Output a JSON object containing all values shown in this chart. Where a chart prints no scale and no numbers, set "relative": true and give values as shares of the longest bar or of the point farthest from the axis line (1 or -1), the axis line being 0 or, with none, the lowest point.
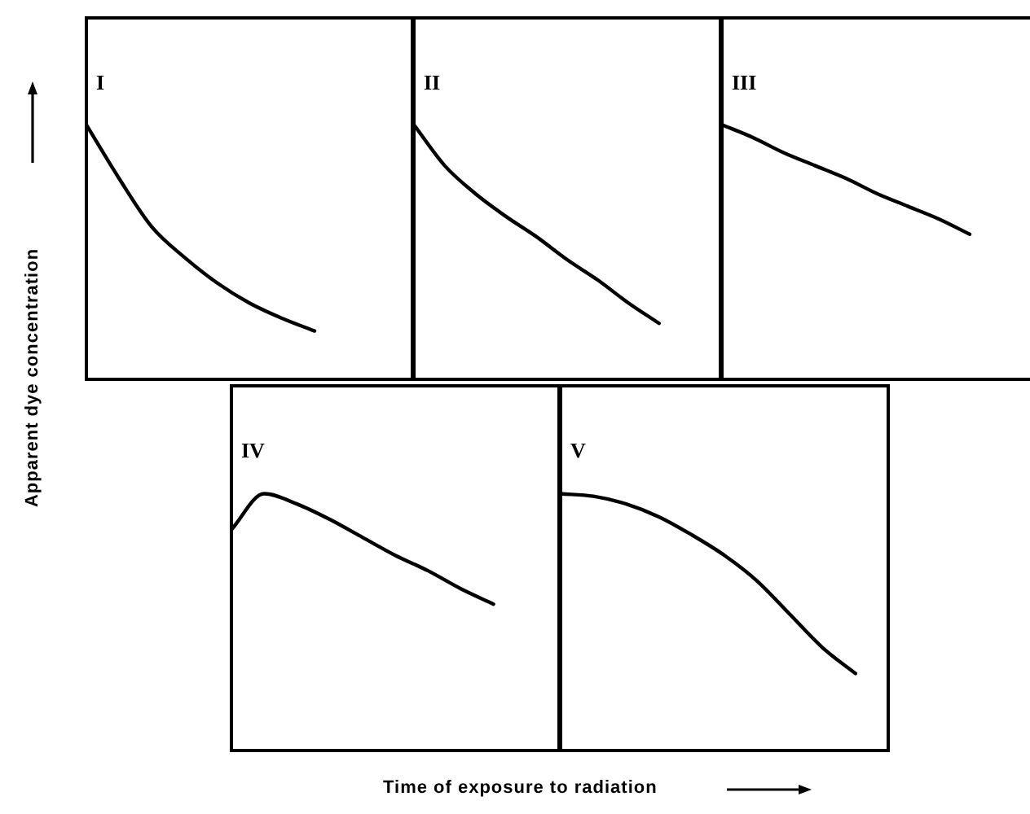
{
  "chart_data": [
    {
      "type": "line",
      "title": "I",
      "ylabel": "Apparent dye concentration",
      "relative": true,
      "categories": [
        null,
        null,
        null,
        null,
        null,
        null,
        null,
        null,
        null,
        null,
        null
      ],
      "series": [
        {
          "color": "#000000",
          "values": [
            1,
            0.79,
            0.6,
            0.48,
            0.38,
            0.3,
            0.24,
            0.19,
            null,
            null,
            null
          ]
        }
      ]
    },
    {
      "type": "line",
      "title": "II",
      "relative": true,
      "categories": [
        null,
        null,
        null,
        null,
        null,
        null,
        null,
        null,
        null,
        null,
        null
      ],
      "series": [
        {
          "color": "#000000",
          "values": [
            1,
            0.84,
            0.73,
            0.64,
            0.56,
            0.47,
            0.39,
            0.3,
            0.22,
            null,
            null
          ]
        }
      ]
    },
    {
      "type": "line",
      "title": "III",
      "relative": true,
      "categories": [
        null,
        null,
        null,
        null,
        null,
        null,
        null,
        null,
        null,
        null,
        null
      ],
      "series": [
        {
          "color": "#000000",
          "values": [
            1,
            0.95,
            0.89,
            0.84,
            0.79,
            0.73,
            0.68,
            0.63,
            0.57,
            null,
            null
          ]
        }
      ]
    },
    {
      "type": "line",
      "title": "IV",
      "xlabel": "Time of exposure to radiation",
      "relative": true,
      "categories": [
        null,
        null,
        null,
        null,
        null,
        null,
        null,
        null,
        null,
        null,
        null
      ],
      "series": [
        {
          "color": "#000000",
          "values": [
            0.86,
            1,
            0.96,
            0.9,
            0.83,
            0.76,
            0.7,
            0.63,
            0.57,
            null,
            null
          ]
        }
      ]
    },
    {
      "type": "line",
      "title": "V",
      "relative": true,
      "categories": [
        null,
        null,
        null,
        null,
        null,
        null,
        null,
        null,
        null,
        null,
        null
      ],
      "series": [
        {
          "color": "#000000",
          "values": [
            1,
            0.99,
            0.96,
            0.91,
            0.84,
            0.76,
            0.66,
            0.53,
            0.4,
            0.3,
            null
          ]
        }
      ]
    }
  ]
}
